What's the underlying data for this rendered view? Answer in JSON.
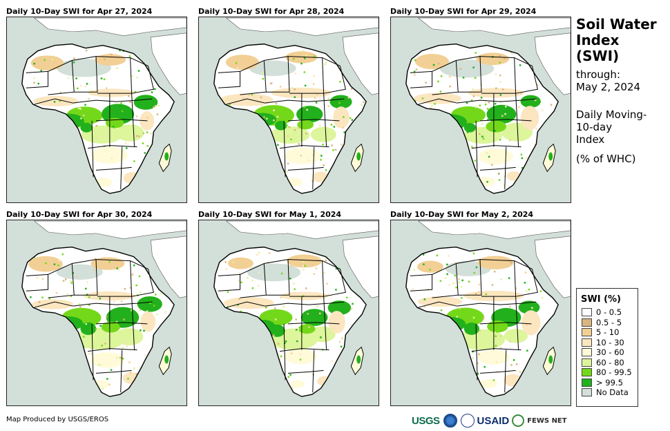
{
  "panels": [
    {
      "title": "Daily 10-Day SWI for Apr 27, 2024"
    },
    {
      "title": "Daily 10-Day SWI for Apr 28, 2024"
    },
    {
      "title": "Daily 10-Day SWI for Apr 29, 2024"
    },
    {
      "title": "Daily 10-Day SWI for Apr 30, 2024"
    },
    {
      "title": "Daily 10-Day SWI for May 1, 2024"
    },
    {
      "title": "Daily 10-Day SWI for May 2, 2024"
    }
  ],
  "side": {
    "title_lines": [
      "Soil Water",
      "Index",
      "(SWI)"
    ],
    "through_label": "through:",
    "through_date": "May 2, 2024",
    "index_lines": [
      "Daily Moving-",
      "10-day",
      "Index"
    ],
    "unit": "(% of WHC)"
  },
  "legend": {
    "title": "SWI (%)",
    "items": [
      {
        "label": "0 - 0.5",
        "color": "#ffffff"
      },
      {
        "label": "0.5 - 5",
        "color": "#d8b57e"
      },
      {
        "label": "5 - 10",
        "color": "#f2cf94"
      },
      {
        "label": "10 - 30",
        "color": "#fbe6c0"
      },
      {
        "label": "30 - 60",
        "color": "#fffbd8"
      },
      {
        "label": "60 - 80",
        "color": "#ddf59b"
      },
      {
        "label": "80 - 99.5",
        "color": "#74d81a"
      },
      {
        "label": "> 99.5",
        "color": "#22b01c"
      },
      {
        "label": "No Data",
        "color": "#d3dfd9"
      }
    ]
  },
  "footer": {
    "credit": "Map Produced by USGS/EROS",
    "logos": [
      "USGS",
      "NOAA",
      "USDA",
      "USAID",
      "FEWS NET"
    ]
  }
}
